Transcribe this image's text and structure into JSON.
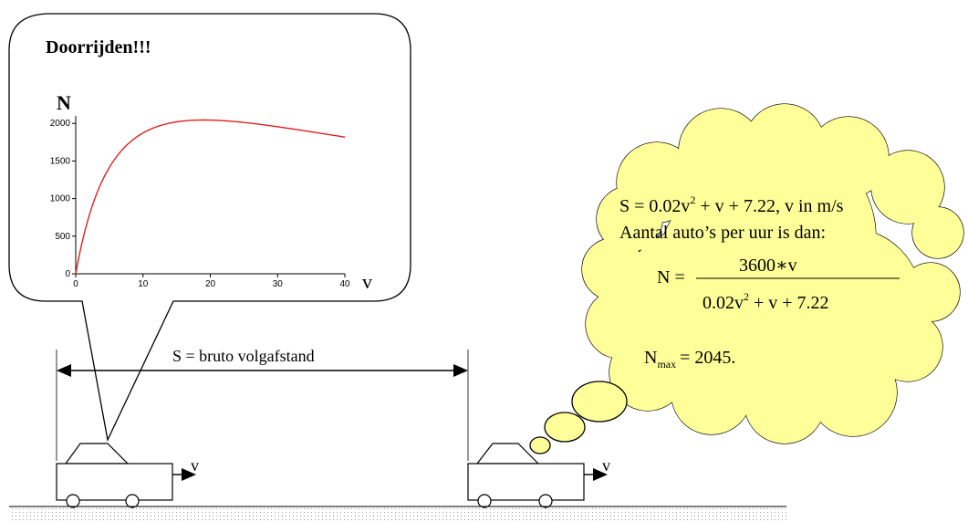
{
  "bubble": {
    "title": "Doorrijden!!!"
  },
  "chart_data": {
    "type": "line",
    "ylabel": "N",
    "xlabel": "v",
    "xlim": [
      0,
      40
    ],
    "ylim": [
      0,
      2100
    ],
    "xticks": [
      "0",
      "10",
      "20",
      "30",
      "40"
    ],
    "yticks": [
      "0",
      "500",
      "1000",
      "1500",
      "2000"
    ],
    "xtick_values": [
      0,
      10,
      20,
      30,
      40
    ],
    "ytick_values": [
      0,
      500,
      1000,
      1500,
      2000
    ],
    "line_color": "#e02020",
    "grid": false,
    "formula": "N = 3600*v / (0.02*v^2 + v + 7.22)"
  },
  "distance": {
    "label": "S = bruto volgafstand"
  },
  "cars": {
    "velocity_label": "v"
  },
  "cloud": {
    "line1_prefix": "S = 0.02v",
    "line1_sup": "2",
    "line1_suffix": " + v + 7.22,  v in m/s",
    "line2": "Aantal auto’s per uur is dan:",
    "n_lhs": "N =",
    "numerator": "3600∗v",
    "denominator_prefix": "0.02v",
    "denominator_sup": "2",
    "denominator_suffix": " + v + 7.22",
    "nmax_symbol": "N",
    "nmax_sub": "max",
    "nmax_value": "= 2045.",
    "fill_color": "#ffff99"
  }
}
